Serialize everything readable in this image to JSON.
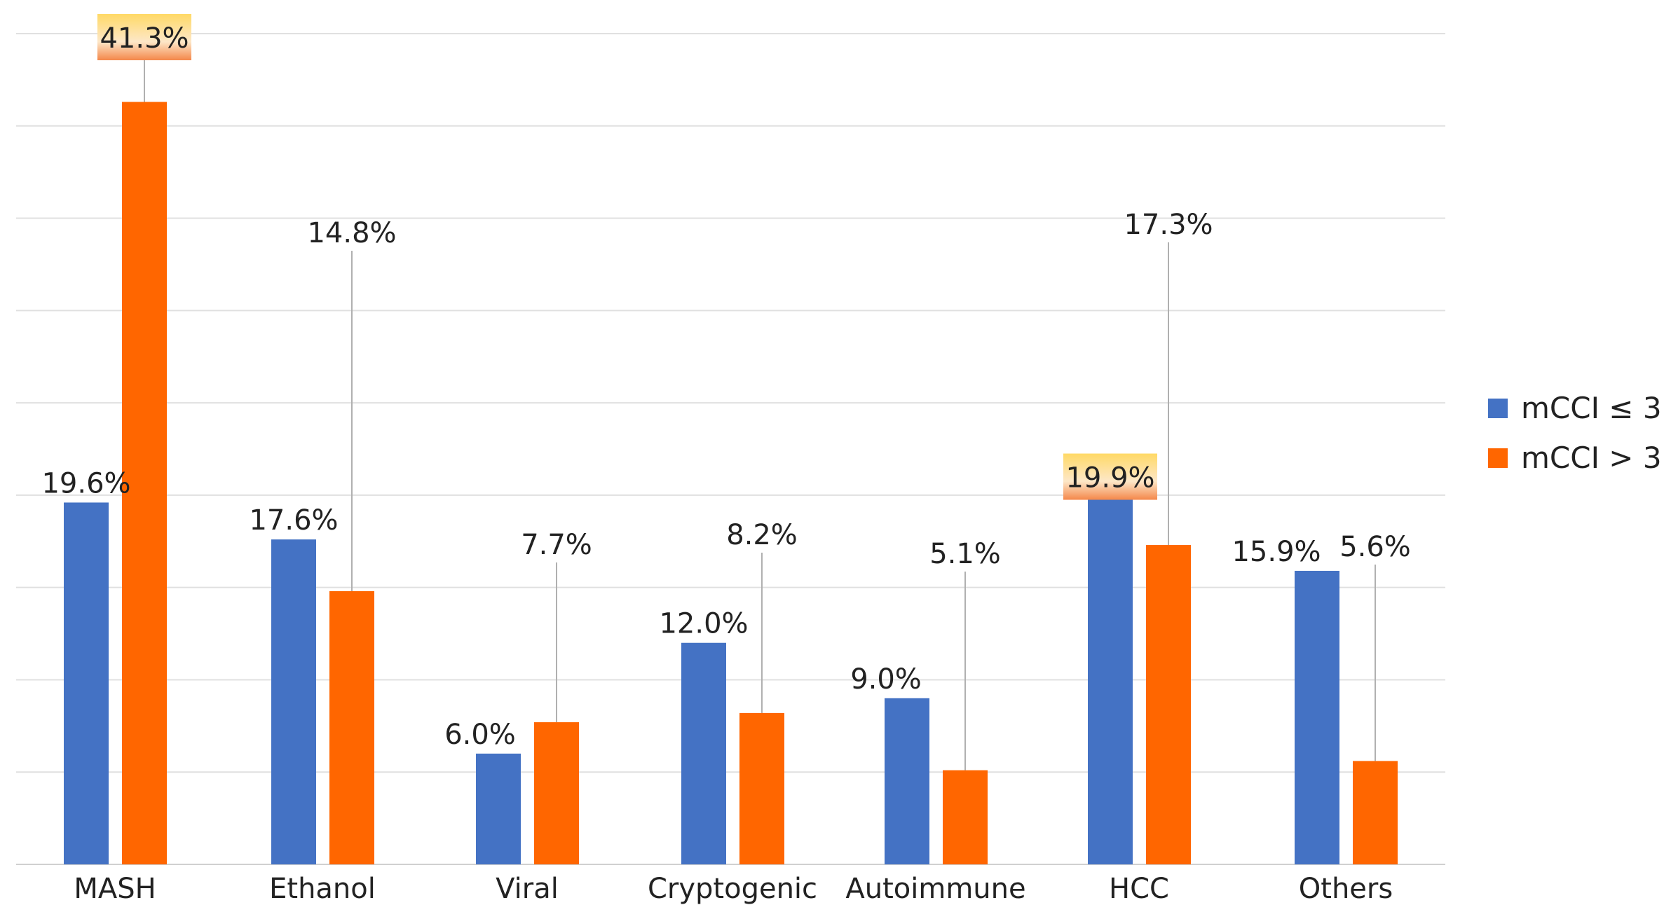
{
  "chart_data": {
    "type": "bar",
    "title": "",
    "xlabel": "",
    "ylabel": "",
    "ylim": [
      0,
      45
    ],
    "grid": true,
    "y_tick_labels_shown": false,
    "legend_position": "right",
    "categories": [
      "MASH",
      "Ethanol",
      "Viral",
      "Cryptogenic",
      "Autoimmune",
      "HCC",
      "Others"
    ],
    "series": [
      {
        "name": "mCCI ≤ 3",
        "color": "#4472C4",
        "values": [
          19.6,
          17.6,
          6.0,
          12.0,
          9.0,
          19.9,
          15.9
        ],
        "labels": [
          "19.6%",
          "17.6%",
          "6.0%",
          "12.0%",
          "9.0%",
          "19.9%",
          "15.9%"
        ]
      },
      {
        "name": "mCCI > 3",
        "color": "#FF6600",
        "values": [
          41.3,
          14.8,
          7.7,
          8.2,
          5.1,
          17.3,
          5.6
        ],
        "labels": [
          "41.3%",
          "14.8%",
          "7.7%",
          "8.2%",
          "5.1%",
          "17.3%",
          "5.6%"
        ]
      }
    ],
    "highlighted_labels": [
      "41.3%",
      "19.9%"
    ]
  }
}
